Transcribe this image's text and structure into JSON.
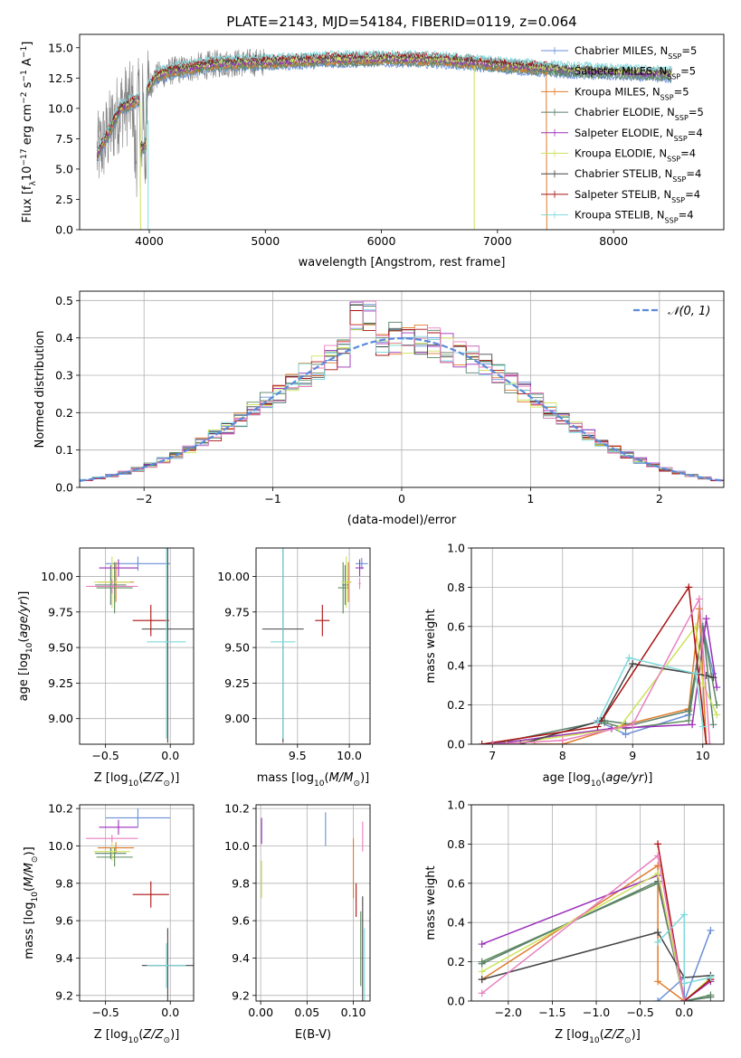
{
  "figure_title": "PLATE=2143, MJD=54184, FIBERID=0119, z=0.064",
  "colors": {
    "Chabrier MILES": "#6a8fd8",
    "Salpeter MILES": "#5d8a5d",
    "Kroupa MILES": "#e07b2a",
    "Chabrier ELODIE": "#5a7f6a",
    "Salpeter ELODIE": "#9a2fb8",
    "Kroupa ELODIE": "#cce35a",
    "Chabrier STELIB": "#444444",
    "Salpeter STELIB": "#aa1111",
    "Kroupa STELIB": "#7fd9db",
    "pink": "#e87fbf",
    "observed": "#808080",
    "gaussian": "#5b8ad9"
  },
  "chart_data": [
    {
      "type": "line",
      "id": "spectrum",
      "title": "PLATE=2143, MJD=54184, FIBERID=0119, z=0.064",
      "xlabel": "wavelength [Angstrom, rest frame]",
      "ylabel": "Flux [f_λ 10^-17 erg cm^-2 s^-1 A^-1]",
      "xlim": [
        3400,
        8950
      ],
      "ylim": [
        0,
        16.1
      ],
      "xticks": [
        4000,
        5000,
        6000,
        7000,
        8000
      ],
      "yticks": [
        "0.0",
        "2.5",
        "5.0",
        "7.5",
        "10.0",
        "12.5",
        "15.0"
      ],
      "legend_position": "top-right",
      "legend": [
        {
          "label": "Chabrier MILES, N_SSP=5",
          "color": "#6a8fd8"
        },
        {
          "label": "Salpeter MILES, N_SSP=5",
          "color": "#5d8a5d"
        },
        {
          "label": "Kroupa MILES, N_SSP=5",
          "color": "#e07b2a"
        },
        {
          "label": "Chabrier ELODIE, N_SSP=5",
          "color": "#5a7f6a"
        },
        {
          "label": "Salpeter ELODIE, N_SSP=4",
          "color": "#9a2fb8"
        },
        {
          "label": "Kroupa ELODIE, N_SSP=4",
          "color": "#cce35a"
        },
        {
          "label": "Chabrier STELIB, N_SSP=4",
          "color": "#444444"
        },
        {
          "label": "Salpeter STELIB, N_SSP=4",
          "color": "#aa1111"
        },
        {
          "label": "Kroupa STELIB, N_SSP=4",
          "color": "#7fd9db"
        }
      ],
      "continuum": {
        "x": [
          3550,
          3650,
          3750,
          3850,
          3950,
          4050,
          4200,
          4400,
          4600,
          5000,
          5500,
          6000,
          6500,
          7000,
          7500,
          8000,
          8500
        ],
        "y": [
          6.2,
          8.0,
          10.0,
          10.5,
          10.8,
          12.6,
          13.1,
          13.4,
          13.7,
          13.8,
          14.0,
          14.1,
          14.0,
          13.6,
          13.2,
          13.0,
          12.8
        ]
      }
    },
    {
      "type": "line",
      "id": "residuals",
      "xlabel": "(data-model)/error",
      "ylabel": "Normed distribution",
      "xlim": [
        -2.5,
        2.5
      ],
      "ylim": [
        0,
        0.525
      ],
      "xticks": [
        "−2",
        "−1",
        "0",
        "1",
        "2"
      ],
      "yticks": [
        "0.0",
        "0.1",
        "0.2",
        "0.3",
        "0.4",
        "0.5"
      ],
      "legend": [
        {
          "label": "𝒩(0, 1)",
          "color": "#5b8ad9"
        }
      ],
      "legend_position": "top-right"
    },
    {
      "type": "scatter",
      "id": "age_vs_Z",
      "xlabel": "Z [log10(Z/Z⊙)]",
      "ylabel": "age [log10(age/yr)]",
      "xlim": [
        -0.7,
        0.18
      ],
      "ylim": [
        8.82,
        10.2
      ],
      "xticks": [
        "−0.5",
        "0.0"
      ],
      "yticks": [
        "9.00",
        "9.25",
        "9.50",
        "9.75",
        "10.00"
      ],
      "points": [
        {
          "model": "Chabrier MILES",
          "x": -0.25,
          "y": 10.09,
          "xerr": 0.25,
          "yerr": 0.05
        },
        {
          "model": "Salpeter MILES",
          "x": -0.43,
          "y": 9.92,
          "xerr": 0.14,
          "yerr": 0.18
        },
        {
          "model": "Kroupa MILES",
          "x": -0.42,
          "y": 9.96,
          "xerr": 0.14,
          "yerr": 0.14
        },
        {
          "model": "Chabrier ELODIE",
          "x": -0.46,
          "y": 9.94,
          "xerr": 0.12,
          "yerr": 0.14
        },
        {
          "model": "Salpeter ELODIE",
          "x": -0.4,
          "y": 10.06,
          "xerr": 0.15,
          "yerr": 0.06
        },
        {
          "model": "Kroupa ELODIE",
          "x": -0.45,
          "y": 9.96,
          "xerr": 0.14,
          "yerr": 0.18
        },
        {
          "model": "Chabrier STELIB",
          "x": -0.02,
          "y": 9.63,
          "xerr": 0.2,
          "yerr": 0.8
        },
        {
          "model": "Salpeter STELIB",
          "x": -0.15,
          "y": 9.69,
          "xerr": 0.14,
          "yerr": 0.11
        },
        {
          "model": "Kroupa STELIB",
          "x": -0.03,
          "y": 9.54,
          "xerr": 0.15,
          "yerr": 0.68
        },
        {
          "model": "pink",
          "x": -0.45,
          "y": 9.93,
          "xerr": 0.2,
          "yerr": 0.05
        }
      ]
    },
    {
      "type": "scatter",
      "id": "age_vs_mass",
      "xlabel": "mass [log10(M/M⊙)]",
      "ylabel": "",
      "xlim": [
        9.1,
        10.2
      ],
      "ylim": [
        8.82,
        10.2
      ],
      "xticks": [
        "9.5",
        "10.0"
      ],
      "yticks": [
        "9.00",
        "9.25",
        "9.50",
        "9.75",
        "10.00"
      ],
      "points": [
        {
          "model": "Chabrier MILES",
          "x": 10.12,
          "y": 10.09,
          "xerr": 0.06,
          "yerr": 0.04
        },
        {
          "model": "Salpeter MILES",
          "x": 9.94,
          "y": 9.92,
          "xerr": 0.05,
          "yerr": 0.18
        },
        {
          "model": "Kroupa MILES",
          "x": 9.99,
          "y": 9.96,
          "xerr": 0.03,
          "yerr": 0.14
        },
        {
          "model": "Chabrier ELODIE",
          "x": 9.96,
          "y": 9.94,
          "xerr": 0.03,
          "yerr": 0.14
        },
        {
          "model": "Salpeter ELODIE",
          "x": 10.1,
          "y": 10.06,
          "xerr": 0.04,
          "yerr": 0.06
        },
        {
          "model": "Kroupa ELODIE",
          "x": 9.97,
          "y": 9.96,
          "xerr": 0.05,
          "yerr": 0.18
        },
        {
          "model": "Chabrier STELIB",
          "x": 9.36,
          "y": 9.63,
          "xerr": 0.2,
          "yerr": 0.8
        },
        {
          "model": "Salpeter STELIB",
          "x": 9.74,
          "y": 9.69,
          "xerr": 0.07,
          "yerr": 0.11
        },
        {
          "model": "Kroupa STELIB",
          "x": 9.36,
          "y": 9.54,
          "xerr": 0.12,
          "yerr": 0.68
        },
        {
          "model": "pink",
          "x": 10.1,
          "y": 9.95,
          "xerr": 0.01,
          "yerr": 0.04
        }
      ]
    },
    {
      "type": "line",
      "id": "massweight_vs_age",
      "xlabel": "age [log10(age/yr)]",
      "ylabel": "mass weight",
      "xlim": [
        6.7,
        10.3
      ],
      "ylim": [
        0,
        1.0
      ],
      "xticks": [
        "7",
        "8",
        "9",
        "10"
      ],
      "yticks": [
        "0.0",
        "0.2",
        "0.4",
        "0.6",
        "0.8",
        "1.0"
      ],
      "series": [
        {
          "model": "Chabrier MILES",
          "x": [
            8.5,
            8.9,
            9.8,
            10.0,
            10.15
          ],
          "y": [
            0.12,
            0.05,
            0.15,
            0.6,
            0.36
          ]
        },
        {
          "model": "Salpeter MILES",
          "x": [
            8.6,
            8.9,
            9.8,
            10.0,
            10.2
          ],
          "y": [
            0.11,
            0.08,
            0.12,
            0.6,
            0.2
          ]
        },
        {
          "model": "Kroupa MILES",
          "x": [
            7.6,
            8.0,
            8.9,
            9.8,
            9.95,
            10.05
          ],
          "y": [
            0.0,
            0.0,
            0.1,
            0.18,
            0.69,
            0.0
          ]
        },
        {
          "model": "Chabrier ELODIE",
          "x": [
            7.0,
            8.6,
            9.0,
            9.8,
            10.0,
            10.15
          ],
          "y": [
            0.0,
            0.12,
            0.1,
            0.17,
            0.6,
            0.1
          ]
        },
        {
          "model": "Salpeter ELODIE",
          "x": [
            7.0,
            8.7,
            9.85,
            10.05,
            10.2
          ],
          "y": [
            0.0,
            0.08,
            0.1,
            0.64,
            0.29
          ]
        },
        {
          "model": "Kroupa ELODIE",
          "x": [
            7.2,
            8.8,
            9.9,
            10.0,
            10.2
          ],
          "y": [
            0.0,
            0.08,
            0.6,
            0.31,
            0.15
          ]
        },
        {
          "model": "Chabrier STELIB",
          "x": [
            7.4,
            8.55,
            9.0,
            10.05,
            10.15
          ],
          "y": [
            0.0,
            0.12,
            0.41,
            0.35,
            0.34
          ]
        },
        {
          "model": "Salpeter STELIB",
          "x": [
            6.85,
            8.5,
            9.8,
            10.05
          ],
          "y": [
            0.0,
            0.09,
            0.8,
            0.0
          ]
        },
        {
          "model": "Kroupa STELIB",
          "x": [
            8.5,
            8.95,
            9.9,
            10.0
          ],
          "y": [
            0.11,
            0.44,
            0.36,
            0.09
          ]
        },
        {
          "model": "pink",
          "x": [
            7.0,
            8.0,
            9.0,
            9.95,
            10.1
          ],
          "y": [
            0.0,
            0.02,
            0.1,
            0.74,
            0.0
          ]
        }
      ]
    },
    {
      "type": "scatter",
      "id": "mass_vs_Z",
      "xlabel": "Z [log10(Z/Z⊙)]",
      "ylabel": "mass [log10(M/M⊙)]",
      "xlim": [
        -0.7,
        0.18
      ],
      "ylim": [
        9.17,
        10.22
      ],
      "xticks": [
        "−0.5",
        "0.0"
      ],
      "yticks": [
        "9.2",
        "9.4",
        "9.6",
        "9.8",
        "10.0",
        "10.2"
      ],
      "points": [
        {
          "model": "Chabrier MILES",
          "x": -0.25,
          "y": 10.15,
          "xerr": 0.25,
          "yerr": 0.05
        },
        {
          "model": "Salpeter MILES",
          "x": -0.43,
          "y": 9.94,
          "xerr": 0.14,
          "yerr": 0.05
        },
        {
          "model": "Kroupa MILES",
          "x": -0.42,
          "y": 9.99,
          "xerr": 0.14,
          "yerr": 0.03
        },
        {
          "model": "Chabrier ELODIE",
          "x": -0.46,
          "y": 9.96,
          "xerr": 0.12,
          "yerr": 0.03
        },
        {
          "model": "Salpeter ELODIE",
          "x": -0.4,
          "y": 10.1,
          "xerr": 0.15,
          "yerr": 0.04
        },
        {
          "model": "Kroupa ELODIE",
          "x": -0.45,
          "y": 9.97,
          "xerr": 0.14,
          "yerr": 0.05
        },
        {
          "model": "Chabrier STELIB",
          "x": -0.02,
          "y": 9.36,
          "xerr": 0.2,
          "yerr": 0.2
        },
        {
          "model": "Salpeter STELIB",
          "x": -0.15,
          "y": 9.74,
          "xerr": 0.14,
          "yerr": 0.07
        },
        {
          "model": "Kroupa STELIB",
          "x": -0.03,
          "y": 9.36,
          "xerr": 0.15,
          "yerr": 0.12
        },
        {
          "model": "pink",
          "x": -0.45,
          "y": 10.04,
          "xerr": 0.2,
          "yerr": 0.02
        }
      ]
    },
    {
      "type": "scatter",
      "id": "mass_vs_ebv",
      "xlabel": "E(B-V)",
      "ylabel": "",
      "xlim": [
        -0.005,
        0.118
      ],
      "ylim": [
        9.17,
        10.22
      ],
      "xticks": [
        "0.00",
        "0.05",
        "0.10"
      ],
      "yticks": [
        "9.2",
        "9.4",
        "9.6",
        "9.8",
        "10.0",
        "10.2"
      ],
      "points": [
        {
          "model": "Chabrier MILES",
          "x": 0.07,
          "y": 10.09,
          "yerr": 0.09
        },
        {
          "model": "Kroupa MILES",
          "x": 0.1,
          "y": 9.88,
          "yerr": 0.16
        },
        {
          "model": "Salpeter ELODIE",
          "x": 0.001,
          "y": 10.08,
          "yerr": 0.07
        },
        {
          "model": "Kroupa ELODIE",
          "x": 0.001,
          "y": 9.82,
          "yerr": 0.1
        },
        {
          "model": "Chabrier STELIB",
          "x": 0.11,
          "y": 9.45,
          "yerr": 0.28
        },
        {
          "model": "Salpeter STELIB",
          "x": 0.103,
          "y": 9.71,
          "yerr": 0.09
        },
        {
          "model": "Kroupa STELIB",
          "x": 0.112,
          "y": 9.36,
          "yerr": 0.2
        },
        {
          "model": "Salpeter MILES",
          "x": 0.108,
          "y": 9.45,
          "yerr": 0.2
        },
        {
          "model": "pink",
          "x": 0.11,
          "y": 10.05,
          "yerr": 0.08
        }
      ]
    },
    {
      "type": "line",
      "id": "massweight_vs_Z",
      "xlabel": "Z [log10(Z/Z⊙)]",
      "ylabel": "mass weight",
      "xlim": [
        -2.42,
        0.45
      ],
      "ylim": [
        0,
        1.0
      ],
      "xticks": [
        "−2.0",
        "−1.5",
        "−1.0",
        "−0.5",
        "0.0"
      ],
      "yticks": [
        "0.0",
        "0.2",
        "0.4",
        "0.6",
        "0.8",
        "1.0"
      ],
      "series": [
        {
          "model": "Chabrier MILES",
          "x": [
            -0.3,
            0.0,
            0.0,
            0.3
          ],
          "y": [
            0.0,
            0.12,
            0.0,
            0.36
          ]
        },
        {
          "model": "Salpeter MILES",
          "x": [
            -2.3,
            -0.3,
            0.0,
            0.3
          ],
          "y": [
            0.2,
            0.6,
            0.0,
            0.03
          ]
        },
        {
          "model": "Kroupa MILES",
          "x": [
            -2.3,
            -0.3,
            -0.3,
            0.0
          ],
          "y": [
            0.11,
            0.69,
            0.1,
            0.0
          ]
        },
        {
          "model": "Chabrier ELODIE",
          "x": [
            -2.3,
            -0.3,
            0.0,
            0.3
          ],
          "y": [
            0.19,
            0.61,
            0.0,
            0.02
          ]
        },
        {
          "model": "Salpeter ELODIE",
          "x": [
            -2.3,
            -0.3,
            0.0,
            0.3
          ],
          "y": [
            0.29,
            0.64,
            0.0,
            0.1
          ]
        },
        {
          "model": "Kroupa ELODIE",
          "x": [
            -2.3,
            -0.3,
            0.0,
            0.3
          ],
          "y": [
            0.15,
            0.65,
            0.0,
            0.12
          ]
        },
        {
          "model": "Chabrier STELIB",
          "x": [
            -2.3,
            -0.3,
            0.0,
            0.3
          ],
          "y": [
            0.11,
            0.35,
            0.12,
            0.13
          ]
        },
        {
          "model": "Salpeter STELIB",
          "x": [
            -0.3,
            0.0,
            0.3
          ],
          "y": [
            0.8,
            0.0,
            0.11
          ]
        },
        {
          "model": "Kroupa STELIB",
          "x": [
            -0.3,
            0.0,
            0.0,
            0.3
          ],
          "y": [
            0.3,
            0.44,
            0.09,
            0.12
          ]
        },
        {
          "model": "pink",
          "x": [
            -2.3,
            -0.3,
            0.0
          ],
          "y": [
            0.04,
            0.74,
            0.0
          ]
        }
      ]
    }
  ]
}
